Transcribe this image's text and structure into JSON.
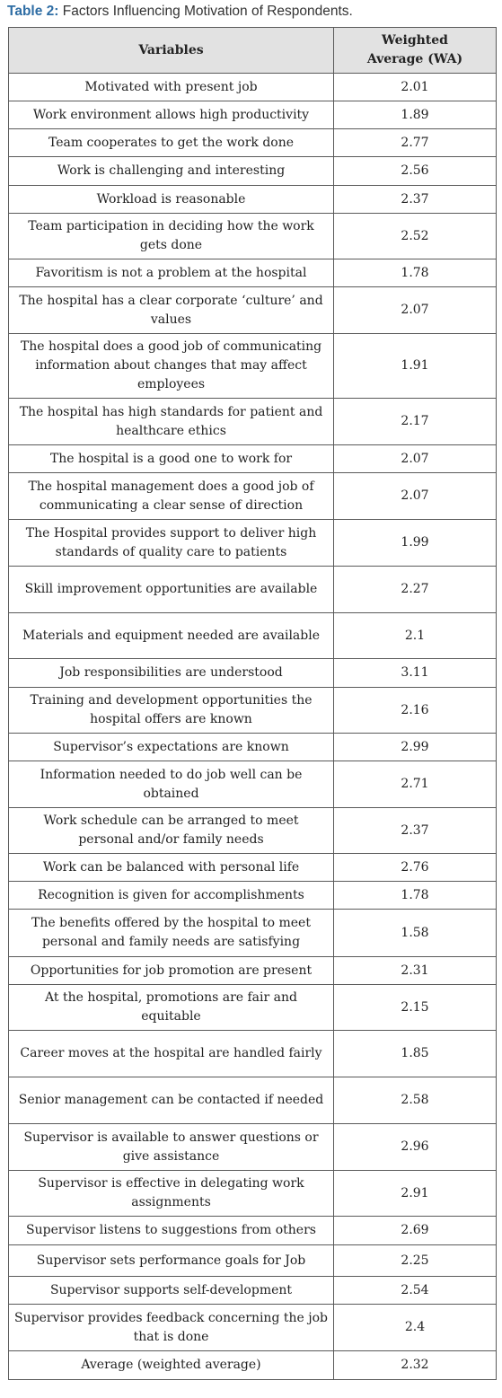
{
  "caption": {
    "label": "Table 2",
    "sep": ":",
    "text": " Factors Influencing Motivation of Respondents."
  },
  "table": {
    "headers": [
      "Variables",
      "Weighted Average (WA)"
    ],
    "rows": [
      {
        "variable": "Motivated with present job",
        "wa": "2.01"
      },
      {
        "variable": "Work environment allows high productivity",
        "wa": "1.89"
      },
      {
        "variable": "Team cooperates to get the work done",
        "wa": "2.77"
      },
      {
        "variable": "Work is challenging and interesting",
        "wa": "2.56"
      },
      {
        "variable": "Workload is reasonable",
        "wa": "2.37"
      },
      {
        "variable": "Team participation in deciding how the work gets done",
        "wa": "2.52"
      },
      {
        "variable": "Favoritism is not a problem at the hospital",
        "wa": "1.78"
      },
      {
        "variable": "The hospital has a clear corporate ‘culture’ and values",
        "wa": "2.07"
      },
      {
        "variable": "The hospital does a good job of communicating information about changes that may affect employees",
        "wa": "1.91"
      },
      {
        "variable": "The hospital has high standards for patient and healthcare ethics",
        "wa": "2.17"
      },
      {
        "variable": "The hospital is a good one to work for",
        "wa": "2.07"
      },
      {
        "variable": "The hospital management does a good job of communicating a clear sense of direction",
        "wa": "2.07"
      },
      {
        "variable": "The Hospital provides support to deliver high standards of quality care to patients",
        "wa": "1.99"
      },
      {
        "variable": "Skill improvement opportunities are available",
        "wa": "2.27"
      },
      {
        "variable": "Materials and equipment needed are available",
        "wa": "2.1"
      },
      {
        "variable": "Job responsibilities are understood",
        "wa": "3.11"
      },
      {
        "variable": "Training and development opportunities the hospital offers are known",
        "wa": "2.16"
      },
      {
        "variable": "Supervisor’s expectations are known",
        "wa": "2.99"
      },
      {
        "variable": "Information needed to do job well can be obtained",
        "wa": "2.71"
      },
      {
        "variable": "Work schedule can be arranged to meet personal and/or family needs",
        "wa": "2.37"
      },
      {
        "variable": "Work can be balanced with personal life",
        "wa": "2.76"
      },
      {
        "variable": "Recognition is given for accomplishments",
        "wa": "1.78"
      },
      {
        "variable": "The benefits offered by the hospital to meet personal and family needs are satisfying",
        "wa": "1.58"
      },
      {
        "variable": "Opportunities for job promotion are present",
        "wa": "2.31"
      },
      {
        "variable": "At the hospital, promotions are fair and equitable",
        "wa": "2.15"
      },
      {
        "variable": "Career moves at the hospital are handled fairly",
        "wa": "1.85"
      },
      {
        "variable": "Senior management can be contacted if needed",
        "wa": "2.58"
      },
      {
        "variable": "Supervisor is available to answer questions or give assistance",
        "wa": "2.96"
      },
      {
        "variable": "Supervisor is effective in delegating work assignments",
        "wa": "2.91"
      },
      {
        "variable": "Supervisor listens to suggestions from others",
        "wa": "2.69"
      },
      {
        "variable": "Supervisor sets performance goals for Job",
        "wa": "2.25"
      },
      {
        "variable": "Supervisor supports self-development",
        "wa": "2.54"
      },
      {
        "variable": "Supervisor provides feedback concerning the job that is done",
        "wa": "2.4"
      },
      {
        "variable": "Average (weighted average)",
        "wa": "2.32"
      }
    ]
  }
}
